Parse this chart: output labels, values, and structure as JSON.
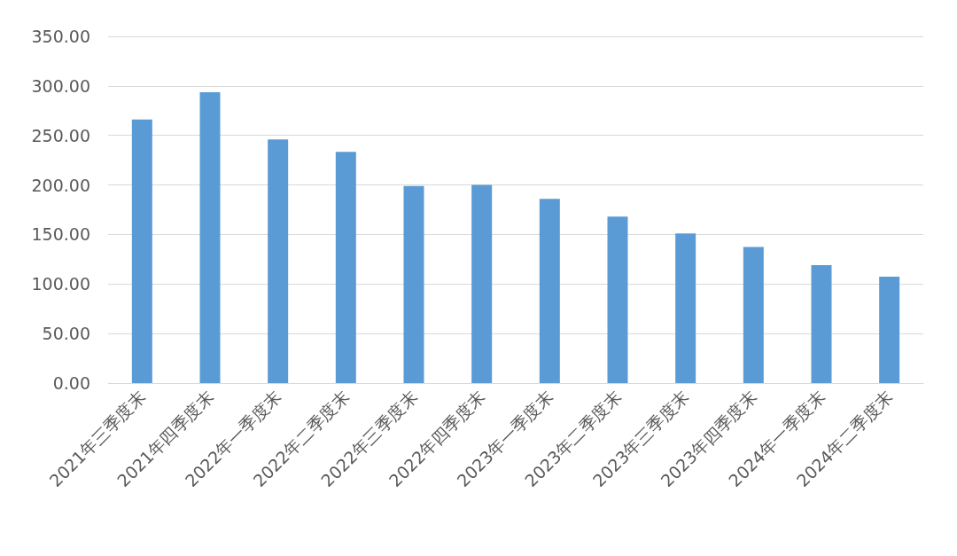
{
  "chart_data": {
    "type": "bar",
    "categories": [
      "2021年三季度末",
      "2021年四季度末",
      "2022年一季度末",
      "2022年二季度末",
      "2022年三季度末",
      "2022年四季度末",
      "2023年一季度末",
      "2023年二季度末",
      "2023年三季度末",
      "2023年四季度末",
      "2024年一季度末",
      "2024年二季度末"
    ],
    "values": [
      266,
      293.5,
      246,
      233.5,
      199,
      200,
      186,
      168,
      151,
      137.5,
      119,
      107.5
    ],
    "color": "#5b9bd5",
    "ylim": [
      0,
      350
    ],
    "yticks": [
      {
        "value": 0,
        "label": "0.00"
      },
      {
        "value": 50,
        "label": "50.00"
      },
      {
        "value": 100,
        "label": "100.00"
      },
      {
        "value": 150,
        "label": "150.00"
      },
      {
        "value": 200,
        "label": "200.00"
      },
      {
        "value": 250,
        "label": "250.00"
      },
      {
        "value": 300,
        "label": "300.00"
      },
      {
        "value": 350,
        "label": "350.00"
      }
    ],
    "grid": true
  }
}
